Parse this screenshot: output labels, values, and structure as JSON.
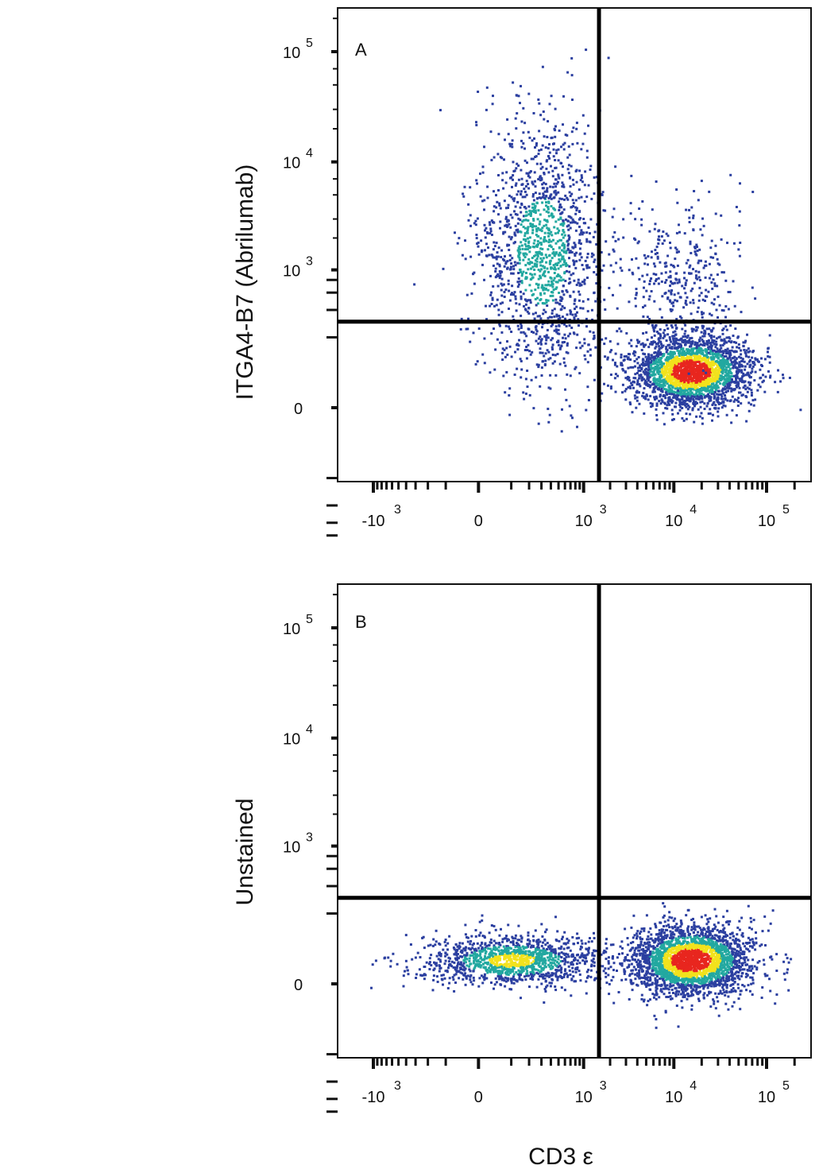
{
  "figure": {
    "xlabel": "CD3 ε"
  },
  "chart_data": [
    {
      "type": "scatter",
      "panel_label": "A",
      "ylabel": "ITGA4-B7 (Abrilumab)",
      "xscale": "biexponential",
      "yscale": "biexponential",
      "x_ticks": [
        {
          "value": -1000,
          "base": "-10",
          "exp": "3"
        },
        {
          "value": 0,
          "base": "0",
          "exp": ""
        },
        {
          "value": 1000,
          "base": "10",
          "exp": "3"
        },
        {
          "value": 10000,
          "base": "10",
          "exp": "4"
        },
        {
          "value": 100000,
          "base": "10",
          "exp": "5"
        }
      ],
      "y_ticks": [
        {
          "value": 0,
          "base": "0",
          "exp": ""
        },
        {
          "value": 1000,
          "base": "10",
          "exp": "3"
        },
        {
          "value": 10000,
          "base": "10",
          "exp": "4"
        },
        {
          "value": 100000,
          "base": "10",
          "exp": "5"
        }
      ],
      "gates": {
        "x": 1500,
        "y": 300
      },
      "populations": [
        {
          "name_visible": false,
          "center": [
            300,
            1500
          ],
          "spread": "wide",
          "density": "medium-low"
        },
        {
          "name_visible": false,
          "center": [
            15000,
            70
          ],
          "spread": "compact",
          "density": "high"
        },
        {
          "name_visible": false,
          "center": [
            12000,
            800
          ],
          "spread": "sparse",
          "density": "low"
        }
      ]
    },
    {
      "type": "scatter",
      "panel_label": "B",
      "ylabel": "Unstained",
      "xscale": "biexponential",
      "yscale": "biexponential",
      "x_ticks": [
        {
          "value": -1000,
          "base": "-10",
          "exp": "3"
        },
        {
          "value": 0,
          "base": "0",
          "exp": ""
        },
        {
          "value": 1000,
          "base": "10",
          "exp": "3"
        },
        {
          "value": 10000,
          "base": "10",
          "exp": "4"
        },
        {
          "value": 100000,
          "base": "10",
          "exp": "5"
        }
      ],
      "y_ticks": [
        {
          "value": 0,
          "base": "0",
          "exp": ""
        },
        {
          "value": 1000,
          "base": "10",
          "exp": "3"
        },
        {
          "value": 10000,
          "base": "10",
          "exp": "4"
        },
        {
          "value": 100000,
          "base": "10",
          "exp": "5"
        }
      ],
      "gates": {
        "x": 1500,
        "y": 300
      },
      "populations": [
        {
          "name_visible": false,
          "center": [
            100,
            40
          ],
          "spread": "elongated-x",
          "density": "medium"
        },
        {
          "name_visible": false,
          "center": [
            15000,
            40
          ],
          "spread": "compact",
          "density": "high"
        }
      ]
    }
  ],
  "colors": {
    "density_low": "#2b3fa0",
    "density_mid": "#22a8a0",
    "density_high": "#f2e21c",
    "density_max": "#e8261f",
    "axis": "#111111",
    "gate": "#000000"
  }
}
